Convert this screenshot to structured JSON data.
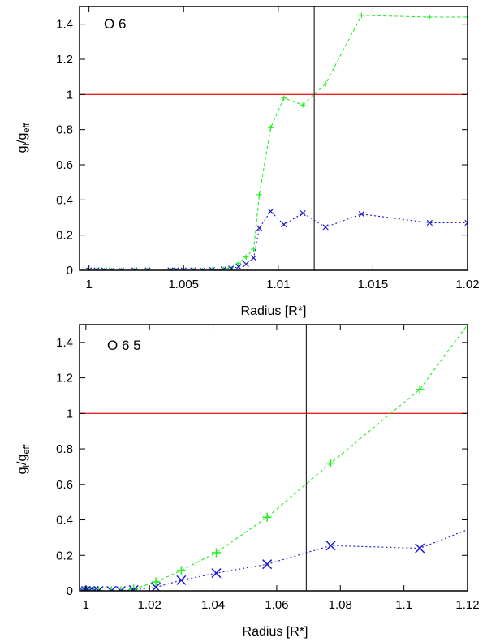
{
  "chart_data": [
    {
      "type": "line",
      "panel_label": "O 6",
      "xlabel": "Radius [R*]",
      "ylabel": "gl/geff",
      "xlim": [
        0.9995,
        1.02
      ],
      "ylim": [
        0,
        1.5
      ],
      "x_ticks": [
        1,
        1.005,
        1.01,
        1.015,
        1.02
      ],
      "x_tick_labels": [
        "1",
        "1.005",
        "1.01",
        "1.015",
        "1.02"
      ],
      "y_ticks": [
        0,
        0.2,
        0.4,
        0.6,
        0.8,
        1,
        1.2,
        1.4
      ],
      "y_tick_labels": [
        "0",
        "0.2",
        "0.4",
        "0.6",
        "0.8",
        "1",
        "1.2",
        "1.4"
      ],
      "hline": 1.0,
      "vline": 1.0119,
      "series": [
        {
          "color": "#22ee22",
          "dash": "4,3",
          "marker": "plus",
          "x": [
            1.0,
            1.0004,
            1.0008,
            1.0012,
            1.0017,
            1.0024,
            1.0031,
            1.0043,
            1.0046,
            1.005,
            1.0055,
            1.006,
            1.0065,
            1.0071,
            1.0075,
            1.0079,
            1.0083,
            1.0087,
            1.009,
            1.0096,
            1.0103,
            1.0113,
            1.0125,
            1.0144,
            1.018,
            1.02
          ],
          "y": [
            0,
            0,
            0,
            0,
            0,
            0,
            0,
            0,
            0,
            0,
            0,
            0,
            0.003,
            0.007,
            0.015,
            0.04,
            0.075,
            0.12,
            0.43,
            0.81,
            0.98,
            0.94,
            1.06,
            1.45,
            1.44,
            1.44
          ]
        },
        {
          "color": "#1a1acc",
          "dash": "2,3",
          "marker": "cross",
          "x": [
            1.0,
            1.0004,
            1.0008,
            1.0012,
            1.0017,
            1.0024,
            1.0031,
            1.0043,
            1.0046,
            1.005,
            1.0055,
            1.006,
            1.0065,
            1.0071,
            1.0075,
            1.0079,
            1.0083,
            1.0087,
            1.009,
            1.0096,
            1.0103,
            1.0113,
            1.0125,
            1.0144,
            1.018,
            1.02
          ],
          "y": [
            0,
            0,
            0,
            0,
            0,
            0,
            0,
            0,
            0,
            0,
            0,
            0,
            0.002,
            0.005,
            0.01,
            0.02,
            0.035,
            0.07,
            0.24,
            0.335,
            0.26,
            0.325,
            0.245,
            0.32,
            0.27,
            0.27
          ]
        }
      ]
    },
    {
      "type": "line",
      "panel_label": "O 6 5",
      "xlabel": "Radius [R*]",
      "ylabel": "gl/geff",
      "xlim": [
        0.998,
        1.12
      ],
      "ylim": [
        0,
        1.5
      ],
      "x_ticks": [
        1,
        1.02,
        1.04,
        1.06,
        1.08,
        1.1,
        1.12
      ],
      "x_tick_labels": [
        "1",
        "1.02",
        "1.04",
        "1.06",
        "1.08",
        "1.1",
        "1.12"
      ],
      "y_ticks": [
        0,
        0.2,
        0.4,
        0.6,
        0.8,
        1,
        1.2,
        1.4
      ],
      "y_tick_labels": [
        "0",
        "0.2",
        "0.4",
        "0.6",
        "0.8",
        "1",
        "1.2",
        "1.4"
      ],
      "hline": 1.0,
      "vline": 1.0693,
      "series": [
        {
          "color": "#22ee22",
          "dash": "4,3",
          "marker": "plus",
          "x": [
            0.999,
            1.0,
            1.001,
            1.0025,
            1.004,
            1.008,
            1.011,
            1.015,
            1.022,
            1.03,
            1.041,
            1.057,
            1.077,
            1.105,
            1.12
          ],
          "y": [
            0,
            0,
            0,
            0,
            0,
            0,
            0,
            0.01,
            0.05,
            0.115,
            0.215,
            0.415,
            0.72,
            1.135,
            1.5
          ],
          "marker_flags": [
            1,
            1,
            1,
            1,
            1,
            1,
            1,
            1,
            1,
            1,
            1,
            1,
            1,
            1,
            0
          ]
        },
        {
          "color": "#1a1acc",
          "dash": "2,3",
          "marker": "cross",
          "x": [
            0.999,
            1.0,
            1.001,
            1.0025,
            1.004,
            1.008,
            1.011,
            1.015,
            1.022,
            1.03,
            1.041,
            1.057,
            1.077,
            1.105,
            1.12
          ],
          "y": [
            0,
            0,
            0,
            0,
            0,
            0,
            0,
            0.005,
            0.02,
            0.06,
            0.1,
            0.15,
            0.255,
            0.24,
            0.345
          ],
          "marker_flags": [
            1,
            1,
            1,
            1,
            1,
            1,
            1,
            1,
            1,
            1,
            1,
            1,
            1,
            1,
            0
          ]
        }
      ]
    }
  ]
}
